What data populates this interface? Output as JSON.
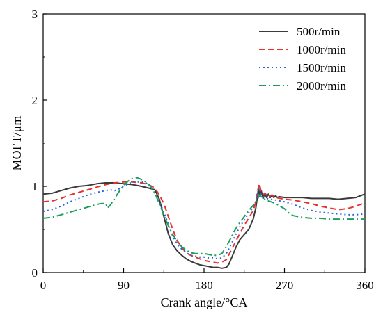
{
  "chart_data": {
    "type": "line",
    "xlabel": "Crank angle/°CA",
    "ylabel": "MOFT/μm",
    "xlim": [
      0,
      360
    ],
    "ylim": [
      0,
      3
    ],
    "x_ticks": [
      "0",
      "90",
      "180",
      "270",
      "360"
    ],
    "y_ticks": [
      "0",
      "1",
      "2",
      "3"
    ],
    "grid": false,
    "legend_position": "top-right",
    "series": [
      {
        "name": "500r/min",
        "color": "#3a3a3a",
        "dash": "solid",
        "points": [
          [
            0,
            0.91
          ],
          [
            10,
            0.92
          ],
          [
            20,
            0.95
          ],
          [
            30,
            0.98
          ],
          [
            40,
            1.0
          ],
          [
            50,
            1.01
          ],
          [
            60,
            1.03
          ],
          [
            70,
            1.04
          ],
          [
            80,
            1.04
          ],
          [
            90,
            1.03
          ],
          [
            100,
            1.02
          ],
          [
            110,
            1.0
          ],
          [
            118,
            0.98
          ],
          [
            125,
            0.96
          ],
          [
            130,
            0.85
          ],
          [
            135,
            0.65
          ],
          [
            140,
            0.45
          ],
          [
            145,
            0.32
          ],
          [
            150,
            0.25
          ],
          [
            155,
            0.2
          ],
          [
            160,
            0.16
          ],
          [
            165,
            0.13
          ],
          [
            170,
            0.11
          ],
          [
            175,
            0.09
          ],
          [
            180,
            0.08
          ],
          [
            185,
            0.07
          ],
          [
            190,
            0.06
          ],
          [
            195,
            0.06
          ],
          [
            200,
            0.05
          ],
          [
            205,
            0.06
          ],
          [
            208,
            0.1
          ],
          [
            212,
            0.2
          ],
          [
            216,
            0.3
          ],
          [
            220,
            0.38
          ],
          [
            225,
            0.44
          ],
          [
            230,
            0.5
          ],
          [
            235,
            0.62
          ],
          [
            238,
            0.75
          ],
          [
            240,
            0.9
          ],
          [
            241,
            1.0
          ],
          [
            242,
            0.88
          ],
          [
            244,
            0.95
          ],
          [
            246,
            0.86
          ],
          [
            248,
            0.92
          ],
          [
            250,
            0.87
          ],
          [
            252,
            0.91
          ],
          [
            254,
            0.87
          ],
          [
            256,
            0.9
          ],
          [
            258,
            0.87
          ],
          [
            260,
            0.89
          ],
          [
            262,
            0.87
          ],
          [
            264,
            0.88
          ],
          [
            270,
            0.87
          ],
          [
            280,
            0.87
          ],
          [
            290,
            0.87
          ],
          [
            300,
            0.86
          ],
          [
            310,
            0.86
          ],
          [
            320,
            0.86
          ],
          [
            330,
            0.85
          ],
          [
            340,
            0.86
          ],
          [
            350,
            0.87
          ],
          [
            355,
            0.89
          ],
          [
            360,
            0.91
          ]
        ]
      },
      {
        "name": "1000r/min",
        "color": "#e8302c",
        "dash": "dashed",
        "points": [
          [
            0,
            0.82
          ],
          [
            10,
            0.83
          ],
          [
            20,
            0.86
          ],
          [
            30,
            0.9
          ],
          [
            40,
            0.93
          ],
          [
            50,
            0.96
          ],
          [
            60,
            0.99
          ],
          [
            70,
            1.02
          ],
          [
            80,
            1.04
          ],
          [
            90,
            1.05
          ],
          [
            100,
            1.05
          ],
          [
            110,
            1.04
          ],
          [
            118,
            1.02
          ],
          [
            125,
            0.98
          ],
          [
            130,
            0.9
          ],
          [
            135,
            0.8
          ],
          [
            140,
            0.65
          ],
          [
            145,
            0.5
          ],
          [
            150,
            0.37
          ],
          [
            155,
            0.29
          ],
          [
            160,
            0.23
          ],
          [
            165,
            0.2
          ],
          [
            170,
            0.18
          ],
          [
            175,
            0.16
          ],
          [
            180,
            0.14
          ],
          [
            185,
            0.13
          ],
          [
            190,
            0.12
          ],
          [
            195,
            0.11
          ],
          [
            200,
            0.12
          ],
          [
            205,
            0.15
          ],
          [
            210,
            0.25
          ],
          [
            215,
            0.35
          ],
          [
            220,
            0.45
          ],
          [
            225,
            0.55
          ],
          [
            230,
            0.63
          ],
          [
            235,
            0.72
          ],
          [
            238,
            0.82
          ],
          [
            240,
            0.95
          ],
          [
            242,
            1.03
          ],
          [
            244,
            0.93
          ],
          [
            246,
            0.9
          ],
          [
            248,
            0.92
          ],
          [
            252,
            0.88
          ],
          [
            256,
            0.9
          ],
          [
            260,
            0.87
          ],
          [
            270,
            0.85
          ],
          [
            280,
            0.84
          ],
          [
            290,
            0.82
          ],
          [
            300,
            0.8
          ],
          [
            310,
            0.77
          ],
          [
            320,
            0.75
          ],
          [
            330,
            0.73
          ],
          [
            340,
            0.74
          ],
          [
            350,
            0.77
          ],
          [
            360,
            0.81
          ]
        ]
      },
      {
        "name": "1500r/min",
        "color": "#2266e0",
        "dash": "dotted",
        "points": [
          [
            0,
            0.71
          ],
          [
            10,
            0.73
          ],
          [
            20,
            0.77
          ],
          [
            30,
            0.82
          ],
          [
            40,
            0.86
          ],
          [
            50,
            0.9
          ],
          [
            60,
            0.93
          ],
          [
            70,
            0.95
          ],
          [
            75,
            0.96
          ],
          [
            80,
            0.95
          ],
          [
            85,
            0.97
          ],
          [
            90,
            1.0
          ],
          [
            95,
            1.03
          ],
          [
            100,
            1.05
          ],
          [
            105,
            1.05
          ],
          [
            110,
            1.05
          ],
          [
            115,
            1.04
          ],
          [
            120,
            1.0
          ],
          [
            125,
            0.92
          ],
          [
            130,
            0.82
          ],
          [
            135,
            0.7
          ],
          [
            140,
            0.56
          ],
          [
            145,
            0.42
          ],
          [
            150,
            0.33
          ],
          [
            155,
            0.27
          ],
          [
            160,
            0.23
          ],
          [
            165,
            0.2
          ],
          [
            170,
            0.19
          ],
          [
            175,
            0.18
          ],
          [
            180,
            0.18
          ],
          [
            185,
            0.17
          ],
          [
            190,
            0.17
          ],
          [
            195,
            0.16
          ],
          [
            200,
            0.17
          ],
          [
            205,
            0.22
          ],
          [
            210,
            0.32
          ],
          [
            215,
            0.43
          ],
          [
            220,
            0.53
          ],
          [
            225,
            0.61
          ],
          [
            230,
            0.69
          ],
          [
            235,
            0.76
          ],
          [
            238,
            0.83
          ],
          [
            240,
            0.92
          ],
          [
            242,
            0.98
          ],
          [
            244,
            0.9
          ],
          [
            246,
            0.88
          ],
          [
            250,
            0.86
          ],
          [
            255,
            0.85
          ],
          [
            260,
            0.84
          ],
          [
            270,
            0.82
          ],
          [
            280,
            0.79
          ],
          [
            290,
            0.75
          ],
          [
            300,
            0.72
          ],
          [
            310,
            0.7
          ],
          [
            320,
            0.69
          ],
          [
            330,
            0.68
          ],
          [
            340,
            0.67
          ],
          [
            350,
            0.67
          ],
          [
            360,
            0.68
          ]
        ]
      },
      {
        "name": "2000r/min",
        "color": "#1e9e5c",
        "dash": "dashdot",
        "points": [
          [
            0,
            0.63
          ],
          [
            10,
            0.64
          ],
          [
            20,
            0.67
          ],
          [
            30,
            0.7
          ],
          [
            40,
            0.73
          ],
          [
            50,
            0.76
          ],
          [
            60,
            0.79
          ],
          [
            65,
            0.8
          ],
          [
            70,
            0.8
          ],
          [
            72,
            0.75
          ],
          [
            75,
            0.78
          ],
          [
            80,
            0.86
          ],
          [
            85,
            0.94
          ],
          [
            90,
            1.01
          ],
          [
            95,
            1.06
          ],
          [
            100,
            1.09
          ],
          [
            105,
            1.1
          ],
          [
            110,
            1.08
          ],
          [
            115,
            1.05
          ],
          [
            120,
            1.0
          ],
          [
            125,
            0.92
          ],
          [
            130,
            0.8
          ],
          [
            135,
            0.67
          ],
          [
            140,
            0.54
          ],
          [
            145,
            0.44
          ],
          [
            150,
            0.36
          ],
          [
            155,
            0.3
          ],
          [
            160,
            0.26
          ],
          [
            165,
            0.23
          ],
          [
            170,
            0.22
          ],
          [
            175,
            0.22
          ],
          [
            180,
            0.22
          ],
          [
            185,
            0.21
          ],
          [
            190,
            0.2
          ],
          [
            195,
            0.2
          ],
          [
            200,
            0.22
          ],
          [
            205,
            0.3
          ],
          [
            210,
            0.4
          ],
          [
            215,
            0.5
          ],
          [
            220,
            0.58
          ],
          [
            225,
            0.65
          ],
          [
            230,
            0.72
          ],
          [
            235,
            0.78
          ],
          [
            240,
            0.85
          ],
          [
            242,
            0.9
          ],
          [
            245,
            0.87
          ],
          [
            250,
            0.84
          ],
          [
            255,
            0.82
          ],
          [
            260,
            0.8
          ],
          [
            265,
            0.77
          ],
          [
            270,
            0.74
          ],
          [
            275,
            0.69
          ],
          [
            280,
            0.66
          ],
          [
            290,
            0.64
          ],
          [
            300,
            0.63
          ],
          [
            310,
            0.63
          ],
          [
            320,
            0.62
          ],
          [
            330,
            0.62
          ],
          [
            340,
            0.62
          ],
          [
            350,
            0.62
          ],
          [
            360,
            0.62
          ]
        ]
      }
    ]
  }
}
